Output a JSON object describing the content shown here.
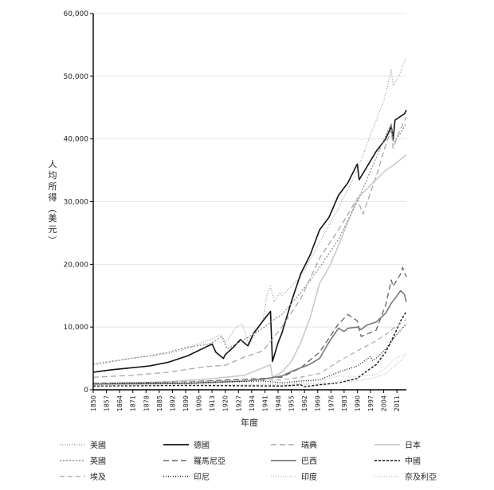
{
  "chart_data": {
    "type": "line",
    "xlabel": "年度",
    "ylabel": "人均所得（美元）",
    "xlim": [
      1850,
      2016
    ],
    "ylim": [
      0,
      60000
    ],
    "y_ticks": [
      0,
      10000,
      20000,
      30000,
      40000,
      50000,
      60000
    ],
    "y_tick_labels": [
      "0",
      "10,000",
      "20,000",
      "30,000",
      "40,000",
      "50,000",
      "60,000"
    ],
    "x_ticks": [
      1850,
      1857,
      1864,
      1871,
      1878,
      1885,
      1892,
      1899,
      1906,
      1913,
      1920,
      1927,
      1934,
      1941,
      1948,
      1955,
      1962,
      1969,
      1976,
      1983,
      1990,
      1997,
      2004,
      2011
    ],
    "x_tick_labels": [
      "1850",
      "1857",
      "1864",
      "1871",
      "1878",
      "1885",
      "1892",
      "1899",
      "1906",
      "1913",
      "1920",
      "1927",
      "1934",
      "1941",
      "1948",
      "1955",
      "1962",
      "1969",
      "1976",
      "1983",
      "1990",
      "1997",
      "2004",
      "2011"
    ],
    "grid": "horizontal",
    "legend_position": "bottom",
    "series": [
      {
        "name": "美國",
        "color": "#9a9a9a",
        "dash": "1,2",
        "width": 1.2,
        "x": [
          1850,
          1870,
          1890,
          1900,
          1910,
          1918,
          1920,
          1926,
          1929,
          1932,
          1933,
          1940,
          1942,
          1944,
          1946,
          1949,
          1950,
          1960,
          1970,
          1980,
          1990,
          2000,
          2004,
          2008,
          2009,
          2012,
          2016
        ],
        "y": [
          4200,
          5000,
          5800,
          6600,
          7800,
          8800,
          7500,
          10000,
          10500,
          7600,
          7300,
          11000,
          15000,
          16500,
          14000,
          15500,
          15000,
          18000,
          23500,
          29000,
          35000,
          43000,
          46000,
          51000,
          48500,
          50000,
          53000
        ]
      },
      {
        "name": "德國",
        "color": "#111111",
        "dash": "",
        "width": 1.6,
        "x": [
          1850,
          1860,
          1870,
          1880,
          1890,
          1900,
          1913,
          1915,
          1919,
          1920,
          1925,
          1928,
          1932,
          1935,
          1940,
          1944,
          1945,
          1946,
          1948,
          1950,
          1955,
          1960,
          1965,
          1970,
          1975,
          1980,
          1985,
          1990,
          1991,
          1995,
          2000,
          2005,
          2008,
          2009,
          2010,
          2015,
          2016
        ],
        "y": [
          2800,
          3200,
          3500,
          3800,
          4400,
          5400,
          7300,
          6000,
          5000,
          5600,
          7000,
          8000,
          7000,
          9000,
          11000,
          12500,
          4500,
          5500,
          7500,
          9000,
          14000,
          18500,
          21500,
          25500,
          27500,
          31000,
          33000,
          36000,
          33500,
          35500,
          38000,
          40000,
          42000,
          40000,
          43000,
          44000,
          44600
        ]
      },
      {
        "name": "瑞典",
        "color": "#a8a8a8",
        "dash": "7,4",
        "width": 1.3,
        "x": [
          1850,
          1870,
          1890,
          1910,
          1920,
          1930,
          1940,
          1950,
          1960,
          1970,
          1980,
          1990,
          1993,
          2000,
          2005,
          2008,
          2009,
          2012,
          2016
        ],
        "y": [
          2000,
          2300,
          2800,
          3700,
          3900,
          5200,
          6200,
          10000,
          14500,
          21000,
          25500,
          30500,
          28000,
          34000,
          39000,
          41500,
          38500,
          41000,
          43500
        ]
      },
      {
        "name": "日本",
        "color": "#c7c7c7",
        "dash": "",
        "width": 1.5,
        "x": [
          1850,
          1870,
          1890,
          1910,
          1930,
          1940,
          1944,
          1945,
          1950,
          1955,
          1960,
          1965,
          1970,
          1975,
          1980,
          1990,
          1995,
          2000,
          2005,
          2010,
          2016
        ],
        "y": [
          900,
          1000,
          1300,
          1700,
          2300,
          3500,
          4000,
          2000,
          2800,
          4500,
          7500,
          11500,
          17000,
          19500,
          23000,
          30500,
          32000,
          33500,
          35000,
          36000,
          37500
        ]
      },
      {
        "name": "英國",
        "color": "#8f8f8f",
        "dash": "2,2",
        "width": 1.3,
        "x": [
          1850,
          1860,
          1870,
          1880,
          1890,
          1900,
          1910,
          1913,
          1918,
          1920,
          1921,
          1930,
          1940,
          1945,
          1950,
          1960,
          1970,
          1980,
          1990,
          2000,
          2005,
          2008,
          2009,
          2012,
          2016
        ],
        "y": [
          4000,
          4500,
          5000,
          5400,
          6000,
          6800,
          7200,
          7500,
          8500,
          7200,
          6500,
          8000,
          9800,
          11000,
          12000,
          15500,
          19500,
          24000,
          30000,
          37000,
          40500,
          42500,
          39500,
          40500,
          42500
        ]
      },
      {
        "name": "羅馬尼亞",
        "color": "#666666",
        "dash": "7,4",
        "width": 1.3,
        "x": [
          1850,
          1900,
          1940,
          1950,
          1960,
          1970,
          1980,
          1985,
          1990,
          1992,
          2000,
          2005,
          2008,
          2009,
          2011,
          2013,
          2014,
          2016
        ],
        "y": [
          1000,
          1300,
          1800,
          2000,
          3500,
          6000,
          10500,
          12000,
          11000,
          8500,
          9500,
          13500,
          17500,
          16500,
          17500,
          18500,
          19500,
          18000
        ]
      },
      {
        "name": "巴西",
        "color": "#777777",
        "dash": "",
        "width": 1.6,
        "x": [
          1850,
          1900,
          1930,
          1940,
          1950,
          1955,
          1960,
          1965,
          1970,
          1975,
          1980,
          1983,
          1985,
          1990,
          1992,
          1995,
          2000,
          2005,
          2008,
          2011,
          2013,
          2015,
          2016
        ],
        "y": [
          900,
          1000,
          1400,
          1700,
          2200,
          2900,
          3500,
          4100,
          5000,
          7600,
          9800,
          9300,
          9800,
          10000,
          9600,
          10300,
          10800,
          12200,
          13800,
          15000,
          15800,
          15200,
          14000
        ]
      },
      {
        "name": "中國",
        "color": "#111111",
        "dash": "3,2",
        "width": 1.4,
        "x": [
          1850,
          1900,
          1950,
          1960,
          1962,
          1970,
          1980,
          1990,
          1995,
          2000,
          2005,
          2010,
          2013,
          2016
        ],
        "y": [
          600,
          700,
          600,
          800,
          500,
          800,
          1100,
          1800,
          3000,
          4000,
          6000,
          9000,
          11000,
          12500
        ]
      },
      {
        "name": "埃及",
        "color": "#b0b0b0",
        "dash": "6,4",
        "width": 1.3,
        "x": [
          1850,
          1900,
          1950,
          1960,
          1970,
          1980,
          1990,
          2000,
          2005,
          2010,
          2016
        ],
        "y": [
          1100,
          1300,
          1600,
          2000,
          2600,
          4500,
          6200,
          7800,
          8800,
          10000,
          11200
        ]
      },
      {
        "name": "印尼",
        "color": "#111111",
        "dash": "1,2",
        "width": 1.3,
        "x": [
          1850,
          1900,
          1940,
          1950,
          1960,
          1970,
          1980,
          1990,
          1997,
          1998,
          2000,
          2005,
          2010,
          2016
        ],
        "y": [
          900,
          1100,
          1400,
          1100,
          1400,
          1600,
          2800,
          3800,
          5300,
          4700,
          5000,
          6500,
          8500,
          10500
        ]
      },
      {
        "name": "印度",
        "color": "#bbbbbb",
        "dash": "1,2",
        "width": 1.3,
        "x": [
          1850,
          1900,
          1950,
          1960,
          1970,
          1980,
          1990,
          2000,
          2005,
          2010,
          2016
        ],
        "y": [
          800,
          850,
          800,
          900,
          1000,
          1100,
          1400,
          2000,
          2600,
          3800,
          5600
        ]
      },
      {
        "name": "奈及利亞",
        "color": "#c5c5c5",
        "dash": "1,2",
        "width": 1.3,
        "x": [
          1850,
          1900,
          1950,
          1960,
          1970,
          1980,
          1990,
          2000,
          2005,
          2010,
          2016
        ],
        "y": [
          700,
          800,
          900,
          1100,
          1500,
          2200,
          2100,
          2400,
          3500,
          5000,
          5800
        ]
      }
    ]
  }
}
